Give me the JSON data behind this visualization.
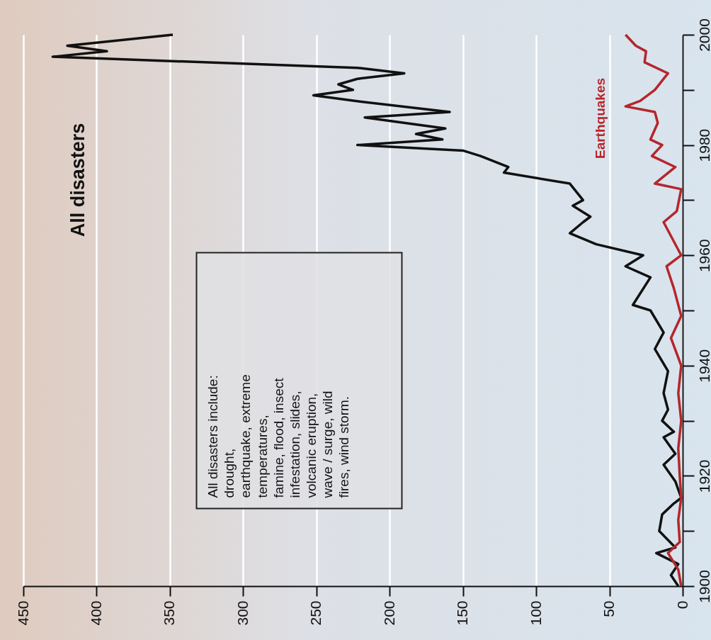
{
  "chart_data": {
    "type": "line",
    "orientation": "horizontal",
    "xlim": [
      450,
      0
    ],
    "xticks": [
      450,
      400,
      350,
      300,
      250,
      200,
      150,
      100,
      50,
      0
    ],
    "ylim": [
      1900,
      2000
    ],
    "yticks": [
      1900,
      {
        "value": 1910,
        "label": null
      },
      1920,
      {
        "value": 1930,
        "label": null
      },
      1940,
      {
        "value": 1950,
        "label": null
      },
      1960,
      {
        "value": 1970,
        "label": null
      },
      1980,
      {
        "value": 1990,
        "label": null
      },
      2000
    ],
    "grid": "x",
    "series": [
      {
        "name": "All disasters",
        "color": "#111111",
        "x": [
          1900,
          1902,
          1904,
          1906,
          1907,
          1910,
          1913,
          1915,
          1916,
          1919,
          1922,
          1924,
          1927,
          1928,
          1930,
          1932,
          1935,
          1939,
          1943,
          1946,
          1950,
          1951,
          1956,
          1958,
          1960,
          1962,
          1964,
          1966,
          1967,
          1969,
          1970,
          1973,
          1975,
          1976,
          1978,
          1979,
          1980,
          1981,
          1982,
          1983,
          1985,
          1986,
          1988,
          1989,
          1990,
          1991,
          1992,
          1993,
          1994,
          1996,
          1997,
          1998,
          2000
        ],
        "values": [
          3,
          8,
          3,
          18,
          5,
          16,
          14,
          6,
          1,
          5,
          13,
          5,
          13,
          6,
          14,
          10,
          13,
          10,
          19,
          13,
          22,
          34,
          22,
          39,
          27,
          59,
          77,
          68,
          63,
          75,
          68,
          77,
          122,
          119,
          138,
          150,
          222,
          164,
          182,
          162,
          217,
          159,
          224,
          252,
          225,
          235,
          222,
          190,
          222,
          430,
          393,
          420,
          348
        ]
      },
      {
        "name": "Earthquakes",
        "color": "#b5262b",
        "x": [
          1900,
          1903,
          1906,
          1908,
          1912,
          1916,
          1920,
          1925,
          1930,
          1935,
          1940,
          1945,
          1949,
          1954,
          1958,
          1960,
          1966,
          1968,
          1972,
          1973,
          1976,
          1978,
          1980,
          1981,
          1984,
          1986,
          1987,
          1988,
          1990,
          1993,
          1995,
          1997,
          1998,
          2000
        ],
        "values": [
          1,
          3,
          10,
          2,
          3,
          1,
          2,
          3,
          1,
          3,
          1,
          8,
          1,
          6,
          11,
          1,
          13,
          4,
          1,
          19,
          5,
          21,
          14,
          22,
          17,
          19,
          39,
          29,
          19,
          10,
          26,
          25,
          32,
          39
        ]
      }
    ],
    "annotations": [
      "All disasters include:\ndrought,\nearthquake, extreme\ntemperatures,\nfamine, flood, insect\ninfestation, slides,\nvolcanic eruption,\nwave / surge, wild\nfires, wind storm."
    ]
  }
}
